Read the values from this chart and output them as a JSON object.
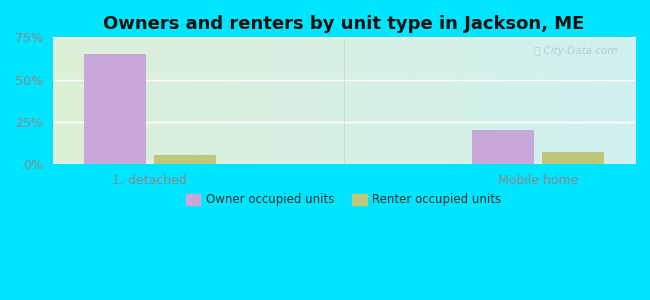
{
  "title": "Owners and renters by unit type in Jackson, ME",
  "categories": [
    "1, detached",
    "Mobile home"
  ],
  "owner_values": [
    65.0,
    20.0
  ],
  "renter_values": [
    5.0,
    7.0
  ],
  "owner_color": "#c8a8d8",
  "renter_color": "#bfc87a",
  "ylim": [
    0,
    75
  ],
  "yticks": [
    0,
    25,
    50,
    75
  ],
  "ytick_labels": [
    "0%",
    "25%",
    "50%",
    "75%"
  ],
  "bar_width": 0.32,
  "title_fontsize": 13,
  "legend_labels": [
    "Owner occupied units",
    "Renter occupied units"
  ],
  "watermark": "City-Data.com",
  "fig_bg_color": "#00e5ff",
  "plot_bg_left": "#ddf0d8",
  "plot_bg_right": "#d0f0f0",
  "grid_color": "#ffffff",
  "tick_color": "#888888",
  "label_color": "#888888"
}
